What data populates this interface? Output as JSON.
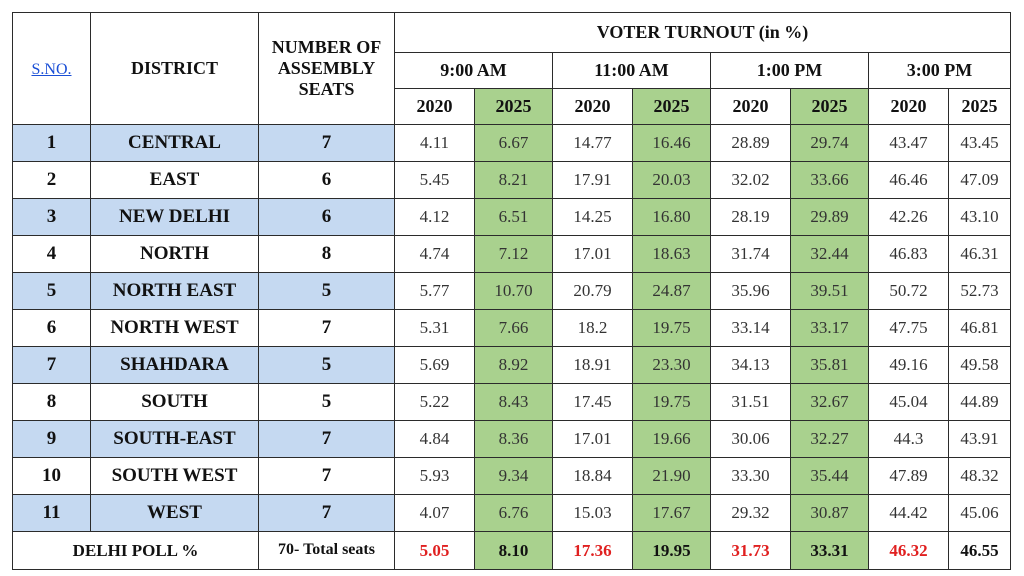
{
  "headers": {
    "sno": "S.NO.",
    "district": "DISTRICT",
    "seats": "NUMBER OF ASSEMBLY SEATS",
    "turnout": "VOTER TURNOUT (in %)",
    "times": [
      "9:00 AM",
      "11:00 AM",
      "1:00 PM",
      "3:00 PM"
    ],
    "years": [
      "2020",
      "2025"
    ]
  },
  "rows": [
    {
      "sno": "1",
      "district": "CENTRAL",
      "seats": "7",
      "values": [
        "4.11",
        "6.67",
        "14.77",
        "16.46",
        "28.89",
        "29.74",
        "43.47",
        "43.45"
      ]
    },
    {
      "sno": "2",
      "district": "EAST",
      "seats": "6",
      "values": [
        "5.45",
        "8.21",
        "17.91",
        "20.03",
        "32.02",
        "33.66",
        "46.46",
        "47.09"
      ]
    },
    {
      "sno": "3",
      "district": "NEW DELHI",
      "seats": "6",
      "values": [
        "4.12",
        "6.51",
        "14.25",
        "16.80",
        "28.19",
        "29.89",
        "42.26",
        "43.10"
      ]
    },
    {
      "sno": "4",
      "district": "NORTH",
      "seats": "8",
      "values": [
        "4.74",
        "7.12",
        "17.01",
        "18.63",
        "31.74",
        "32.44",
        "46.83",
        "46.31"
      ]
    },
    {
      "sno": "5",
      "district": "NORTH EAST",
      "seats": "5",
      "values": [
        "5.77",
        "10.70",
        "20.79",
        "24.87",
        "35.96",
        "39.51",
        "50.72",
        "52.73"
      ]
    },
    {
      "sno": "6",
      "district": "NORTH WEST",
      "seats": "7",
      "values": [
        "5.31",
        "7.66",
        "18.2",
        "19.75",
        "33.14",
        "33.17",
        "47.75",
        "46.81"
      ]
    },
    {
      "sno": "7",
      "district": "SHAHDARA",
      "seats": "5",
      "values": [
        "5.69",
        "8.92",
        "18.91",
        "23.30",
        "34.13",
        "35.81",
        "49.16",
        "49.58"
      ]
    },
    {
      "sno": "8",
      "district": "SOUTH",
      "seats": "5",
      "values": [
        "5.22",
        "8.43",
        "17.45",
        "19.75",
        "31.51",
        "32.67",
        "45.04",
        "44.89"
      ]
    },
    {
      "sno": "9",
      "district": "SOUTH-EAST",
      "seats": "7",
      "values": [
        "4.84",
        "8.36",
        "17.01",
        "19.66",
        "30.06",
        "32.27",
        "44.3",
        "43.91"
      ]
    },
    {
      "sno": "10",
      "district": "SOUTH WEST",
      "seats": "7",
      "values": [
        "5.93",
        "9.34",
        "18.84",
        "21.90",
        "33.30",
        "35.44",
        "47.89",
        "48.32"
      ]
    },
    {
      "sno": "11",
      "district": "WEST",
      "seats": "7",
      "values": [
        "4.07",
        "6.76",
        "15.03",
        "17.67",
        "29.32",
        "30.87",
        "44.42",
        "45.06"
      ]
    }
  ],
  "footer": {
    "label": "DELHI POLL %",
    "total_seats": "70- Total seats",
    "values": [
      "5.05",
      "8.10",
      "17.36",
      "19.95",
      "31.73",
      "33.31",
      "46.32",
      "46.55"
    ]
  },
  "colors": {
    "highlight_2025": "#a9d18e",
    "district_row_blue": "#c5d9f1",
    "footer_2020_text": "#e02020"
  }
}
